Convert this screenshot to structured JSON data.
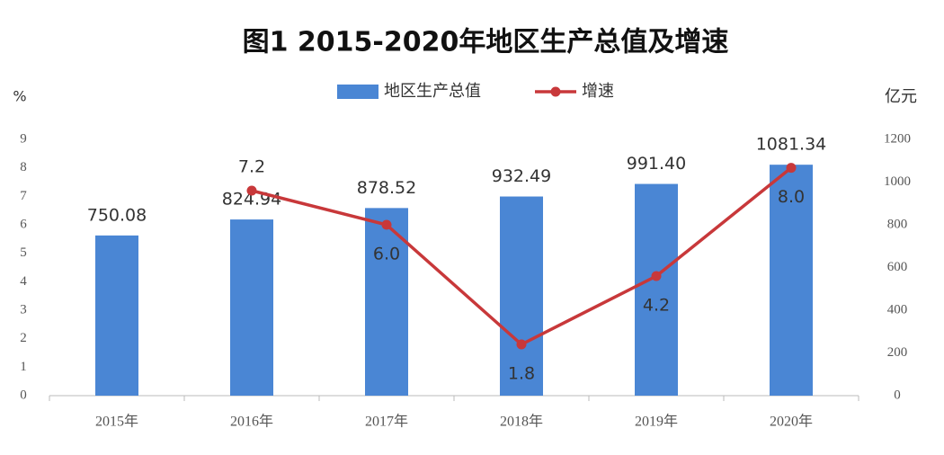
{
  "chart_data": {
    "type": "bar-line",
    "title": "图1 2015-2020年地区生产总值及增速",
    "y_label": "%",
    "y2_label": "亿元",
    "categories": [
      "2015年",
      "2016年",
      "2017年",
      "2018年",
      "2019年",
      "2020年"
    ],
    "series": [
      {
        "name": "地区生产总值",
        "type": "bar",
        "axis": "y2",
        "color": "#4a86d4",
        "values": [
          750.08,
          824.94,
          878.52,
          932.49,
          991.4,
          1081.34
        ],
        "value_labels": [
          "750.08",
          "824.94",
          "878.52",
          "932.49",
          "991.40",
          "1081.34"
        ]
      },
      {
        "name": "增速",
        "type": "line",
        "axis": "y",
        "color": "#c8383a",
        "values": [
          null,
          7.2,
          6.0,
          1.8,
          4.2,
          8.0
        ],
        "value_labels": [
          null,
          "7.2",
          "6.0",
          "1.8",
          "4.2",
          "8.0"
        ]
      }
    ],
    "ylim": [
      0,
      9
    ],
    "yticks": [
      0,
      1,
      2,
      3,
      4,
      5,
      6,
      7,
      8,
      9
    ],
    "y2lim": [
      0,
      1200
    ],
    "y2ticks": [
      0,
      200,
      400,
      600,
      800,
      1000,
      1200
    ],
    "legend": "top"
  }
}
